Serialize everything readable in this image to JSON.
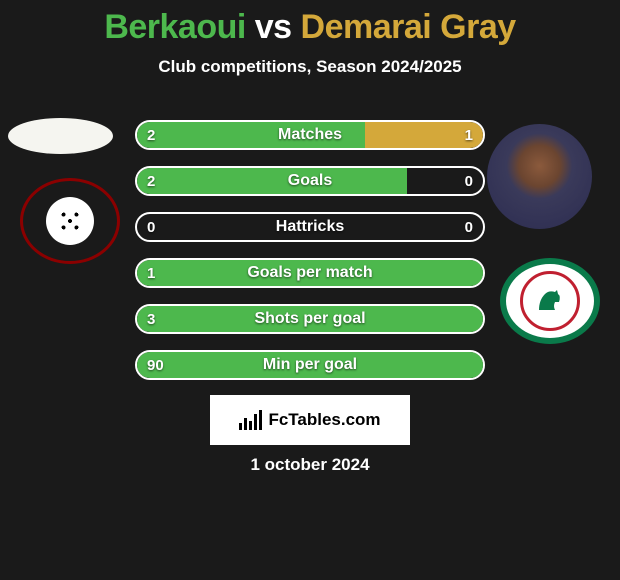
{
  "header": {
    "player_left": "Berkaoui",
    "vs": "vs",
    "player_right": "Demarai Gray",
    "subtitle": "Club competitions, Season 2024/2025"
  },
  "colors": {
    "left_name": "#4db84d",
    "right_name": "#d4a83a",
    "left_fill": "#4db84d",
    "right_fill": "#d4a83a",
    "background": "#1a1a1a",
    "text": "#ffffff",
    "row_border": "#ffffff"
  },
  "stats": [
    {
      "label": "Matches",
      "left_val": "2",
      "right_val": "1",
      "left_pct": 66,
      "right_pct": 34
    },
    {
      "label": "Goals",
      "left_val": "2",
      "right_val": "0",
      "left_pct": 78,
      "right_pct": 0
    },
    {
      "label": "Hattricks",
      "left_val": "0",
      "right_val": "0",
      "left_pct": 0,
      "right_pct": 0
    },
    {
      "label": "Goals per match",
      "left_val": "1",
      "right_val": "",
      "left_pct": 100,
      "right_pct": 0
    },
    {
      "label": "Shots per goal",
      "left_val": "3",
      "right_val": "",
      "left_pct": 100,
      "right_pct": 0
    },
    {
      "label": "Min per goal",
      "left_val": "90",
      "right_val": "",
      "left_pct": 100,
      "right_pct": 0
    }
  ],
  "footer": {
    "brand": "FcTables.com",
    "date": "1 october 2024"
  },
  "clubs": {
    "left_name": "alraed-fc-badge",
    "right_name": "ettifaq-fc-badge"
  }
}
